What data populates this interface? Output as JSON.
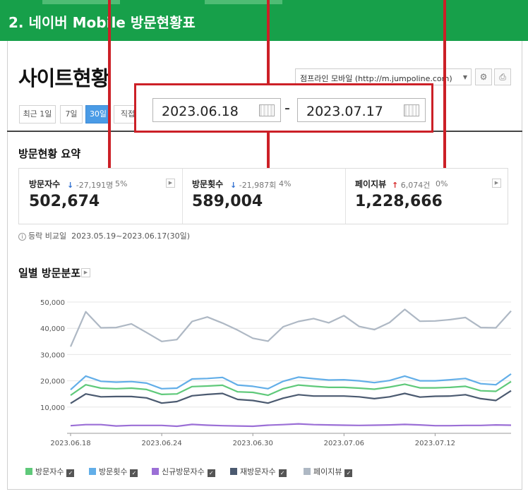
{
  "banner": {
    "title": "2. 네이버 Mobile 방문현황표"
  },
  "page": {
    "title": "사이트현황"
  },
  "site_select": {
    "value": "점프라인 모바일 (http://m.jumpoline.com)"
  },
  "periods": [
    "최근 1일",
    "7일",
    "30일",
    "직접"
  ],
  "active_period": "30일",
  "date_range": {
    "start": "2023.06.18",
    "separator": "-",
    "end": "2023.07.17"
  },
  "summary": {
    "title": "방문현황 요약",
    "metrics": [
      {
        "label": "방문자수",
        "direction": "down",
        "delta": "-27,191명",
        "pct": "5%",
        "value": "502,674"
      },
      {
        "label": "방문횟수",
        "direction": "down",
        "delta": "-21,987회",
        "pct": "4%",
        "value": "589,004"
      },
      {
        "label": "페이지뷰",
        "direction": "up",
        "delta": "6,074건",
        "pct": "0%",
        "value": "1,228,666"
      }
    ]
  },
  "compare": {
    "label": "등락 비교일",
    "range": "2023.05.19~2023.06.17(30일)"
  },
  "chart_data": {
    "type": "line",
    "title": "일별 방문분포",
    "x": [
      "2023.06.18",
      "2023.06.19",
      "2023.06.20",
      "2023.06.21",
      "2023.06.22",
      "2023.06.23",
      "2023.06.24",
      "2023.06.25",
      "2023.06.26",
      "2023.06.27",
      "2023.06.28",
      "2023.06.29",
      "2023.06.30",
      "2023.07.01",
      "2023.07.02",
      "2023.07.03",
      "2023.07.04",
      "2023.07.05",
      "2023.07.06",
      "2023.07.07",
      "2023.07.08",
      "2023.07.09",
      "2023.07.10",
      "2023.07.11",
      "2023.07.12",
      "2023.07.13",
      "2023.07.14",
      "2023.07.15",
      "2023.07.16",
      "2023.07.17"
    ],
    "xticks": [
      "2023.06.18",
      "2023.06.24",
      "2023.06.30",
      "2023.07.06",
      "2023.07.12"
    ],
    "ylim": [
      0,
      50000
    ],
    "yticks": [
      10000,
      20000,
      30000,
      40000,
      50000
    ],
    "ytick_labels": [
      "10,000",
      "20,000",
      "30,000",
      "40,000",
      "50,000"
    ],
    "grid": true,
    "legend_position": "bottom",
    "series": [
      {
        "name": "방문자수",
        "color": "#5fc97a",
        "values": [
          14500,
          18500,
          17200,
          17000,
          17200,
          16700,
          14800,
          15000,
          17800,
          18000,
          18300,
          15800,
          15600,
          14500,
          17000,
          18400,
          17900,
          17500,
          17500,
          17200,
          16800,
          17600,
          18700,
          17300,
          17300,
          17500,
          17900,
          16200,
          16000,
          19700
        ]
      },
      {
        "name": "방문횟수",
        "color": "#62aee8",
        "values": [
          16600,
          21800,
          19800,
          19500,
          19700,
          19100,
          17000,
          17200,
          20700,
          20900,
          21300,
          18400,
          17900,
          17000,
          19800,
          21400,
          20800,
          20300,
          20400,
          20000,
          19300,
          20100,
          21800,
          20000,
          20000,
          20400,
          20900,
          18900,
          18500,
          22600
        ]
      },
      {
        "name": "신규방문자수",
        "color": "#9b6fd6",
        "values": [
          2900,
          3300,
          3300,
          2800,
          3000,
          3000,
          3000,
          2700,
          3400,
          3100,
          2900,
          2800,
          2700,
          3100,
          3300,
          3600,
          3300,
          3200,
          3100,
          3000,
          3100,
          3200,
          3400,
          3200,
          2900,
          2900,
          3000,
          3000,
          3200,
          3100
        ]
      },
      {
        "name": "재방문자수",
        "color": "#4b5a70",
        "values": [
          11400,
          15000,
          13900,
          14000,
          14000,
          13500,
          11500,
          12100,
          14300,
          14800,
          15200,
          12900,
          12500,
          11500,
          13400,
          14700,
          14200,
          14200,
          14200,
          13900,
          13200,
          13900,
          15200,
          13800,
          14100,
          14200,
          14700,
          13200,
          12500,
          16200
        ]
      },
      {
        "name": "페이지뷰",
        "color": "#aeb8c4",
        "values": [
          33000,
          46300,
          40200,
          40300,
          41700,
          38400,
          35000,
          35700,
          42600,
          44300,
          42000,
          39300,
          36200,
          35100,
          40600,
          42600,
          43700,
          42100,
          44800,
          40700,
          39500,
          42200,
          47200,
          42700,
          42800,
          43300,
          44100,
          40300,
          40200,
          46600
        ]
      }
    ]
  },
  "icons": {
    "settings": "gear-icon",
    "print": "printer-icon",
    "calendar": "calendar-icon"
  },
  "colors": {
    "banner": "#17a04a",
    "callout": "#cc2027",
    "active_tab": "#4a9be6"
  }
}
